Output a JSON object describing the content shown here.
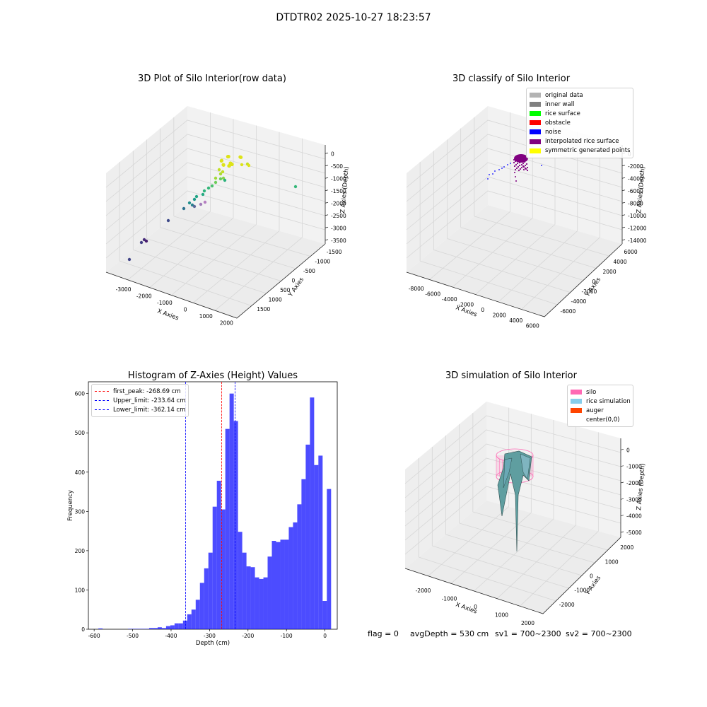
{
  "suptitle": "DTDTR02 2025-10-27 18:23:57",
  "panels": {
    "raw": {
      "title": "3D Plot of Silo Interior(row data)",
      "xlabel": "X Axies",
      "ylabel": "Y Axies",
      "zlabel": "Z Axies (Depth)",
      "xticks": [
        "-3000",
        "-2000",
        "-1000",
        "0",
        "1000",
        "2000"
      ],
      "yticks": [
        "-1500",
        "-1000",
        "-500",
        "0",
        "500",
        "1000",
        "1500"
      ],
      "zticks": [
        "-3500",
        "-3000",
        "-2500",
        "-2000",
        "-1500",
        "-1000",
        "-500",
        "0"
      ]
    },
    "classify": {
      "title": "3D classify of Silo Interior",
      "xlabel": "X Axies",
      "ylabel": "Y Axies",
      "zlabel": "Z Axies (Depth)",
      "xticks": [
        "-8000",
        "-6000",
        "-4000",
        "-2000",
        "0",
        "2000",
        "4000",
        "6000"
      ],
      "yticks": [
        "-6000",
        "-4000",
        "-2000",
        "0",
        "2000",
        "4000",
        "6000"
      ],
      "zticks": [
        "-14000",
        "-12000",
        "-10000",
        "-8000",
        "-6000",
        "-4000",
        "-2000",
        "0"
      ],
      "legend": [
        {
          "label": "original data",
          "color": "#b3b3b3"
        },
        {
          "label": "inner wall",
          "color": "#808080"
        },
        {
          "label": "rice surface",
          "color": "#00ff00"
        },
        {
          "label": "obstacle",
          "color": "#ff0000"
        },
        {
          "label": "noise",
          "color": "#0000ff"
        },
        {
          "label": "interpolated rice surface",
          "color": "#800080"
        },
        {
          "label": "symmetric generated points",
          "color": "#ffff00"
        }
      ]
    },
    "simulation": {
      "title": "3D simulation of Silo Interior",
      "xlabel": "X Axies",
      "ylabel": "Y Axies",
      "zlabel": "Z Axies (Depth)",
      "xticks": [
        "-2000",
        "-1000",
        "0",
        "1000",
        "2000"
      ],
      "yticks": [
        "-2000",
        "-1000",
        "0",
        "1000",
        "2000"
      ],
      "zticks": [
        "-5000",
        "-4000",
        "-3000",
        "-2000",
        "-1000",
        "0"
      ],
      "legend": [
        {
          "label": "silo",
          "color": "#ff69b4"
        },
        {
          "label": "rice simulation",
          "color": "#87ceeb"
        },
        {
          "label": "auger",
          "color": "#ff4500"
        },
        {
          "label": "center(0,0)",
          "color": "#ffffff"
        }
      ]
    }
  },
  "chart_data": {
    "type": "bar",
    "title": "Histogram of Z-Axies (Height) Values",
    "xlabel": "Depth (cm)",
    "ylabel": "Frequency",
    "xlim": [
      -615,
      32
    ],
    "ylim": [
      0,
      630
    ],
    "xticks": [
      -600,
      -500,
      -400,
      -300,
      -200,
      -100,
      0
    ],
    "yticks": [
      0,
      100,
      200,
      300,
      400,
      500,
      600
    ],
    "bin_width": 11,
    "bin_start": -600,
    "color": "#0000ff",
    "values": [
      0,
      2,
      0,
      0,
      0,
      0,
      0,
      0,
      1,
      1,
      1,
      1,
      1,
      3,
      3,
      5,
      3,
      8,
      10,
      15,
      15,
      22,
      38,
      50,
      75,
      118,
      155,
      195,
      312,
      378,
      305,
      510,
      600,
      530,
      248,
      195,
      160,
      158,
      132,
      128,
      132,
      185,
      225,
      222,
      228,
      228,
      260,
      272,
      318,
      382,
      470,
      590,
      418,
      442,
      72,
      357
    ],
    "lines": [
      {
        "label": "first_peak: -268.69 cm",
        "value": -268.69,
        "color": "#ff0000"
      },
      {
        "label": "Upper_limit: -233.64 cm",
        "value": -233.64,
        "color": "#0000ff"
      },
      {
        "label": "Lower_limit: -362.14 cm",
        "value": -362.14,
        "color": "#0000ff"
      }
    ]
  },
  "status": {
    "flag": "flag = 0",
    "avg_depth": "avgDepth = 530 cm",
    "sv1": "sv1 = 700~2300",
    "sv2": "sv2 = 700~2300"
  }
}
